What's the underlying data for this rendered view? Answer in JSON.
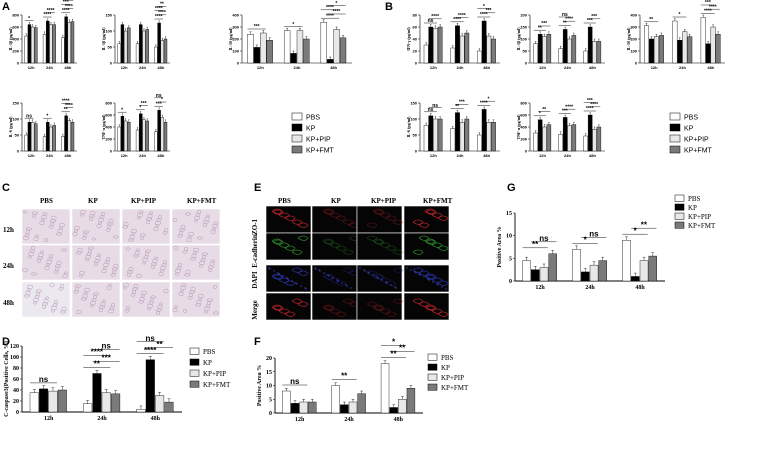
{
  "panel_labels": [
    "A",
    "B",
    "C",
    "D",
    "E",
    "F",
    "G"
  ],
  "groups": [
    "PBS",
    "KP",
    "KP+PIP",
    "KP+FMT"
  ],
  "timepoints": [
    "12h",
    "24h",
    "48h"
  ],
  "colors": {
    "PBS": "#ffffff",
    "KP": "#000000",
    "KP+PIP": "#e8e8e8",
    "KP+FMT": "#7a7a7a"
  },
  "panel_c": {
    "col_titles": [
      "PBS",
      "KP",
      "KP+PIP",
      "KP+FMT"
    ],
    "row_titles": [
      "12h",
      "24h",
      "48h"
    ]
  },
  "panel_e": {
    "col_titles": [
      "PBS",
      "KP",
      "KP+PIP",
      "KP+FMT"
    ],
    "row_titles": [
      "ZO-1",
      "E-cadherin",
      "DAPI",
      "Merge"
    ]
  },
  "chart_data": [
    {
      "id": "A1",
      "type": "bar",
      "ylabel": "IL-1β (pg/ml)",
      "ylim": [
        0,
        800
      ],
      "yticks": [
        0,
        200,
        400,
        600,
        800
      ],
      "categories": [
        "12h",
        "24h",
        "48h"
      ],
      "series": [
        {
          "name": "PBS",
          "values": [
            450,
            480,
            420
          ]
        },
        {
          "name": "KP",
          "values": [
            640,
            700,
            770
          ]
        },
        {
          "name": "KP+PIP",
          "values": [
            600,
            640,
            680
          ]
        },
        {
          "name": "KP+FMT",
          "values": [
            590,
            640,
            690
          ]
        }
      ],
      "significance": [
        {
          "group": "12h",
          "label": "*"
        },
        {
          "group": "24h",
          "label": "****"
        },
        {
          "group": "24h",
          "label": "****"
        },
        {
          "group": "48h",
          "label": "****"
        },
        {
          "group": "48h",
          "label": "****"
        },
        {
          "group": "48h",
          "label": "***"
        },
        {
          "group": "48h",
          "label": "ns"
        }
      ]
    },
    {
      "id": "A2",
      "type": "bar",
      "ylabel": "IL-1β (pg/ml)",
      "ylim": [
        0,
        150
      ],
      "yticks": [
        0,
        50,
        100,
        150
      ],
      "categories": [
        "12h",
        "24h",
        "48h"
      ],
      "series": [
        {
          "name": "PBS",
          "values": [
            60,
            60,
            50
          ]
        },
        {
          "name": "KP",
          "values": [
            120,
            120,
            125
          ]
        },
        {
          "name": "KP+PIP",
          "values": [
            100,
            100,
            70
          ]
        },
        {
          "name": "KP+FMT",
          "values": [
            110,
            105,
            75
          ]
        }
      ],
      "significance": [
        {
          "group": "48h",
          "label": "****"
        },
        {
          "group": "48h",
          "label": "****"
        },
        {
          "group": "48h",
          "label": "****"
        },
        {
          "group": "48h",
          "label": "**"
        }
      ]
    },
    {
      "id": "A3",
      "type": "bar",
      "ylabel": "IL-10 (pg/ml)",
      "ylim": [
        0,
        400
      ],
      "yticks": [
        0,
        100,
        200,
        300,
        400
      ],
      "categories": [
        "12h",
        "24h",
        "48h"
      ],
      "series": [
        {
          "name": "PBS",
          "values": [
            240,
            270,
            340
          ]
        },
        {
          "name": "KP",
          "values": [
            130,
            80,
            30
          ]
        },
        {
          "name": "KP+PIP",
          "values": [
            250,
            270,
            280
          ]
        },
        {
          "name": "KP+FMT",
          "values": [
            190,
            200,
            210
          ]
        }
      ],
      "significance": [
        {
          "group": "12h",
          "label": "***"
        },
        {
          "group": "24h",
          "label": "*"
        },
        {
          "group": "48h",
          "label": "****"
        },
        {
          "group": "48h",
          "label": "****"
        },
        {
          "group": "48h",
          "label": "****"
        },
        {
          "group": "48h",
          "label": "*"
        }
      ]
    },
    {
      "id": "A4",
      "type": "bar",
      "ylabel": "IL-6 (pg/ml)",
      "ylim": [
        0,
        150
      ],
      "yticks": [
        0,
        50,
        100,
        150
      ],
      "categories": [
        "12h",
        "24h",
        "48h"
      ],
      "series": [
        {
          "name": "PBS",
          "values": [
            50,
            45,
            45
          ]
        },
        {
          "name": "KP",
          "values": [
            90,
            90,
            110
          ]
        },
        {
          "name": "KP+PIP",
          "values": [
            90,
            75,
            95
          ]
        },
        {
          "name": "KP+FMT",
          "values": [
            85,
            80,
            90
          ]
        }
      ],
      "significance": [
        {
          "group": "12h",
          "label": "ns"
        },
        {
          "group": "24h",
          "label": "*"
        },
        {
          "group": "48h",
          "label": "**"
        },
        {
          "group": "48h",
          "label": "****"
        },
        {
          "group": "48h",
          "label": "****"
        }
      ]
    },
    {
      "id": "A5",
      "type": "bar",
      "ylabel": "TNF-α (pg/ml)",
      "ylim": [
        0,
        800
      ],
      "yticks": [
        0,
        200,
        400,
        600,
        800
      ],
      "categories": [
        "12h",
        "24h",
        "48h"
      ],
      "series": [
        {
          "name": "PBS",
          "values": [
            400,
            350,
            320
          ]
        },
        {
          "name": "KP",
          "values": [
            580,
            620,
            680
          ]
        },
        {
          "name": "KP+PIP",
          "values": [
            500,
            520,
            560
          ]
        },
        {
          "name": "KP+FMT",
          "values": [
            480,
            500,
            480
          ]
        }
      ],
      "significance": [
        {
          "group": "12h",
          "label": "*"
        },
        {
          "group": "24h",
          "label": "*"
        },
        {
          "group": "24h",
          "label": "***"
        },
        {
          "group": "48h",
          "label": "***"
        },
        {
          "group": "48h",
          "label": "*"
        },
        {
          "group": "48h",
          "label": "ns"
        }
      ]
    },
    {
      "id": "B1",
      "type": "bar",
      "ylabel": "IFN-γ (pg/ml)",
      "ylim": [
        0,
        80
      ],
      "yticks": [
        0,
        20,
        40,
        60,
        80
      ],
      "categories": [
        "12h",
        "24h",
        "48h"
      ],
      "series": [
        {
          "name": "PBS",
          "values": [
            30,
            25,
            20
          ]
        },
        {
          "name": "KP",
          "values": [
            60,
            62,
            70
          ]
        },
        {
          "name": "KP+PIP",
          "values": [
            58,
            45,
            45
          ]
        },
        {
          "name": "KP+FMT",
          "values": [
            60,
            50,
            40
          ]
        }
      ],
      "significance": [
        {
          "group": "12h",
          "label": "ns"
        },
        {
          "group": "12h",
          "label": "****"
        },
        {
          "group": "24h",
          "label": "****"
        },
        {
          "group": "24h",
          "label": "****"
        },
        {
          "group": "48h",
          "label": "****"
        },
        {
          "group": "48h",
          "label": "***"
        },
        {
          "group": "48h",
          "label": "*"
        }
      ]
    },
    {
      "id": "B2",
      "type": "bar",
      "ylabel": "IL-1β (pg/ml)",
      "ylim": [
        0,
        200
      ],
      "yticks": [
        0,
        50,
        100,
        150,
        200
      ],
      "categories": [
        "12h",
        "24h",
        "48h"
      ],
      "series": [
        {
          "name": "PBS",
          "values": [
            80,
            60,
            50
          ]
        },
        {
          "name": "KP",
          "values": [
            120,
            140,
            150
          ]
        },
        {
          "name": "KP+PIP",
          "values": [
            110,
            100,
            90
          ]
        },
        {
          "name": "KP+FMT",
          "values": [
            120,
            115,
            90
          ]
        }
      ],
      "significance": [
        {
          "group": "12h",
          "label": "**"
        },
        {
          "group": "12h",
          "label": "***"
        },
        {
          "group": "24h",
          "label": "**"
        },
        {
          "group": "24h",
          "label": "****"
        },
        {
          "group": "24h",
          "label": "ns"
        },
        {
          "group": "48h",
          "label": "***"
        },
        {
          "group": "48h",
          "label": "***"
        }
      ]
    },
    {
      "id": "B3",
      "type": "bar",
      "ylabel": "IL-10 (pg/ml)",
      "ylim": [
        0,
        400
      ],
      "yticks": [
        0,
        100,
        200,
        300,
        400
      ],
      "categories": [
        "12h",
        "24h",
        "48h"
      ],
      "series": [
        {
          "name": "PBS",
          "values": [
            310,
            350,
            380
          ]
        },
        {
          "name": "KP",
          "values": [
            200,
            190,
            160
          ]
        },
        {
          "name": "KP+PIP",
          "values": [
            220,
            260,
            300
          ]
        },
        {
          "name": "KP+FMT",
          "values": [
            230,
            220,
            240
          ]
        }
      ],
      "significance": [
        {
          "group": "12h",
          "label": "**"
        },
        {
          "group": "24h",
          "label": "*"
        },
        {
          "group": "48h",
          "label": "****"
        },
        {
          "group": "48h",
          "label": "****"
        },
        {
          "group": "48h",
          "label": "***"
        }
      ]
    },
    {
      "id": "B4",
      "type": "bar",
      "ylabel": "IL-6 (pg/ml)",
      "ylim": [
        0,
        150
      ],
      "yticks": [
        0,
        50,
        100,
        150
      ],
      "categories": [
        "12h",
        "24h",
        "48h"
      ],
      "series": [
        {
          "name": "PBS",
          "values": [
            80,
            70,
            50
          ]
        },
        {
          "name": "KP",
          "values": [
            110,
            120,
            130
          ]
        },
        {
          "name": "KP+PIP",
          "values": [
            100,
            90,
            90
          ]
        },
        {
          "name": "KP+FMT",
          "values": [
            100,
            100,
            90
          ]
        }
      ],
      "significance": [
        {
          "group": "12h",
          "label": "ns"
        },
        {
          "group": "12h",
          "label": "ns"
        },
        {
          "group": "24h",
          "label": "**"
        },
        {
          "group": "24h",
          "label": "***"
        },
        {
          "group": "48h",
          "label": "****"
        },
        {
          "group": "48h",
          "label": "*"
        }
      ]
    },
    {
      "id": "B5",
      "type": "bar",
      "ylabel": "TNF-α (pg/ml)",
      "ylim": [
        0,
        800
      ],
      "yticks": [
        0,
        200,
        400,
        600,
        800
      ],
      "categories": [
        "12h",
        "24h",
        "48h"
      ],
      "series": [
        {
          "name": "PBS",
          "values": [
            300,
            280,
            250
          ]
        },
        {
          "name": "KP",
          "values": [
            520,
            560,
            600
          ]
        },
        {
          "name": "KP+PIP",
          "values": [
            400,
            420,
            360
          ]
        },
        {
          "name": "KP+FMT",
          "values": [
            440,
            440,
            400
          ]
        }
      ],
      "significance": [
        {
          "group": "12h",
          "label": "*"
        },
        {
          "group": "12h",
          "label": "**"
        },
        {
          "group": "24h",
          "label": "***"
        },
        {
          "group": "24h",
          "label": "****"
        },
        {
          "group": "48h",
          "label": "****"
        },
        {
          "group": "48h",
          "label": "****"
        },
        {
          "group": "48h",
          "label": "***"
        }
      ]
    },
    {
      "id": "D",
      "type": "bar",
      "ylabel": "C-caspase3(Positive Cells, %)",
      "ylim": [
        0,
        120
      ],
      "yticks": [
        0,
        20,
        40,
        60,
        80,
        100,
        120
      ],
      "categories": [
        "12h",
        "24h",
        "48h"
      ],
      "series": [
        {
          "name": "PBS",
          "values": [
            35,
            15,
            5
          ]
        },
        {
          "name": "KP",
          "values": [
            42,
            70,
            95
          ]
        },
        {
          "name": "KP+PIP",
          "values": [
            38,
            35,
            30
          ]
        },
        {
          "name": "KP+FMT",
          "values": [
            40,
            33,
            18
          ]
        }
      ],
      "significance": [
        {
          "group": "12h",
          "label": "ns"
        },
        {
          "group": "24h",
          "label": "**"
        },
        {
          "group": "24h",
          "label": "***"
        },
        {
          "group": "24h",
          "label": "****"
        },
        {
          "group": "24h",
          "label": "ns"
        },
        {
          "group": "48h",
          "label": "****"
        },
        {
          "group": "48h",
          "label": "**"
        },
        {
          "group": "48h",
          "label": "ns"
        }
      ]
    },
    {
      "id": "F",
      "type": "bar",
      "ylabel": "Positive Area %",
      "ylim": [
        0,
        20
      ],
      "yticks": [
        0,
        5,
        10,
        15,
        20
      ],
      "categories": [
        "12h",
        "24h",
        "48h"
      ],
      "series": [
        {
          "name": "PBS",
          "values": [
            8,
            10,
            18
          ]
        },
        {
          "name": "KP",
          "values": [
            3.5,
            3,
            2
          ]
        },
        {
          "name": "KP+PIP",
          "values": [
            4,
            4,
            5
          ]
        },
        {
          "name": "KP+FMT",
          "values": [
            4,
            7,
            9
          ]
        }
      ],
      "significance": [
        {
          "group": "12h",
          "label": "ns"
        },
        {
          "group": "24h",
          "label": "**"
        },
        {
          "group": "48h",
          "label": "**"
        },
        {
          "group": "48h",
          "label": "**"
        },
        {
          "group": "48h",
          "label": "*"
        }
      ]
    },
    {
      "id": "G",
      "type": "bar",
      "ylabel": "Positive Area %",
      "ylim": [
        0,
        15
      ],
      "yticks": [
        0,
        5,
        10,
        15
      ],
      "categories": [
        "12h",
        "24h",
        "48h"
      ],
      "series": [
        {
          "name": "PBS",
          "values": [
            4.5,
            7,
            9
          ]
        },
        {
          "name": "KP",
          "values": [
            2.5,
            2,
            1
          ]
        },
        {
          "name": "KP+PIP",
          "values": [
            3,
            3.5,
            4.5
          ]
        },
        {
          "name": "KP+FMT",
          "values": [
            6,
            4.5,
            5.5
          ]
        }
      ],
      "significance": [
        {
          "group": "12h",
          "label": "**"
        },
        {
          "group": "12h",
          "label": "ns"
        },
        {
          "group": "24h",
          "label": "*"
        },
        {
          "group": "24h",
          "label": "ns"
        },
        {
          "group": "48h",
          "label": "*"
        },
        {
          "group": "48h",
          "label": "**"
        }
      ]
    }
  ]
}
